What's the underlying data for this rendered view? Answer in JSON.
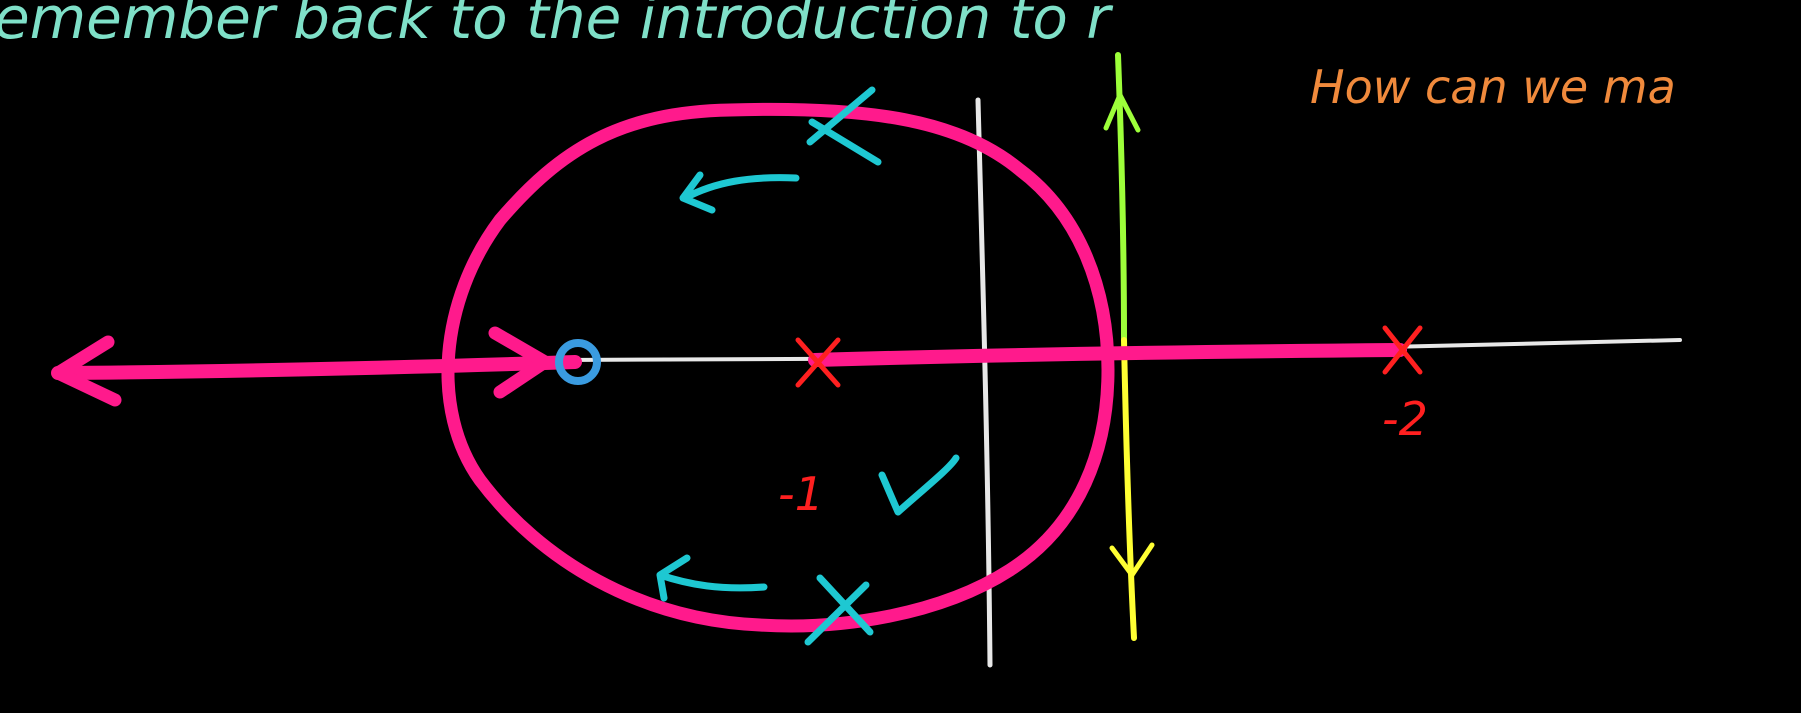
{
  "text": {
    "top_line": "emember back to the introduction to r",
    "side_note": "How can we ma",
    "label_minus_one": "-1",
    "label_minus_two": "-2",
    "check_mark": "✓"
  },
  "colors": {
    "background": "#000000",
    "locus": "#ff1a8c",
    "axis": "#e8e8e8",
    "pole": "#ff2020",
    "zero": "#3a9be0",
    "annotation": "#1ec8d2",
    "top_text": "#7fe0c8",
    "side_note": "#f08a3c",
    "arrow_up": "#9dff3a",
    "arrow_down": "#ffff33"
  }
}
